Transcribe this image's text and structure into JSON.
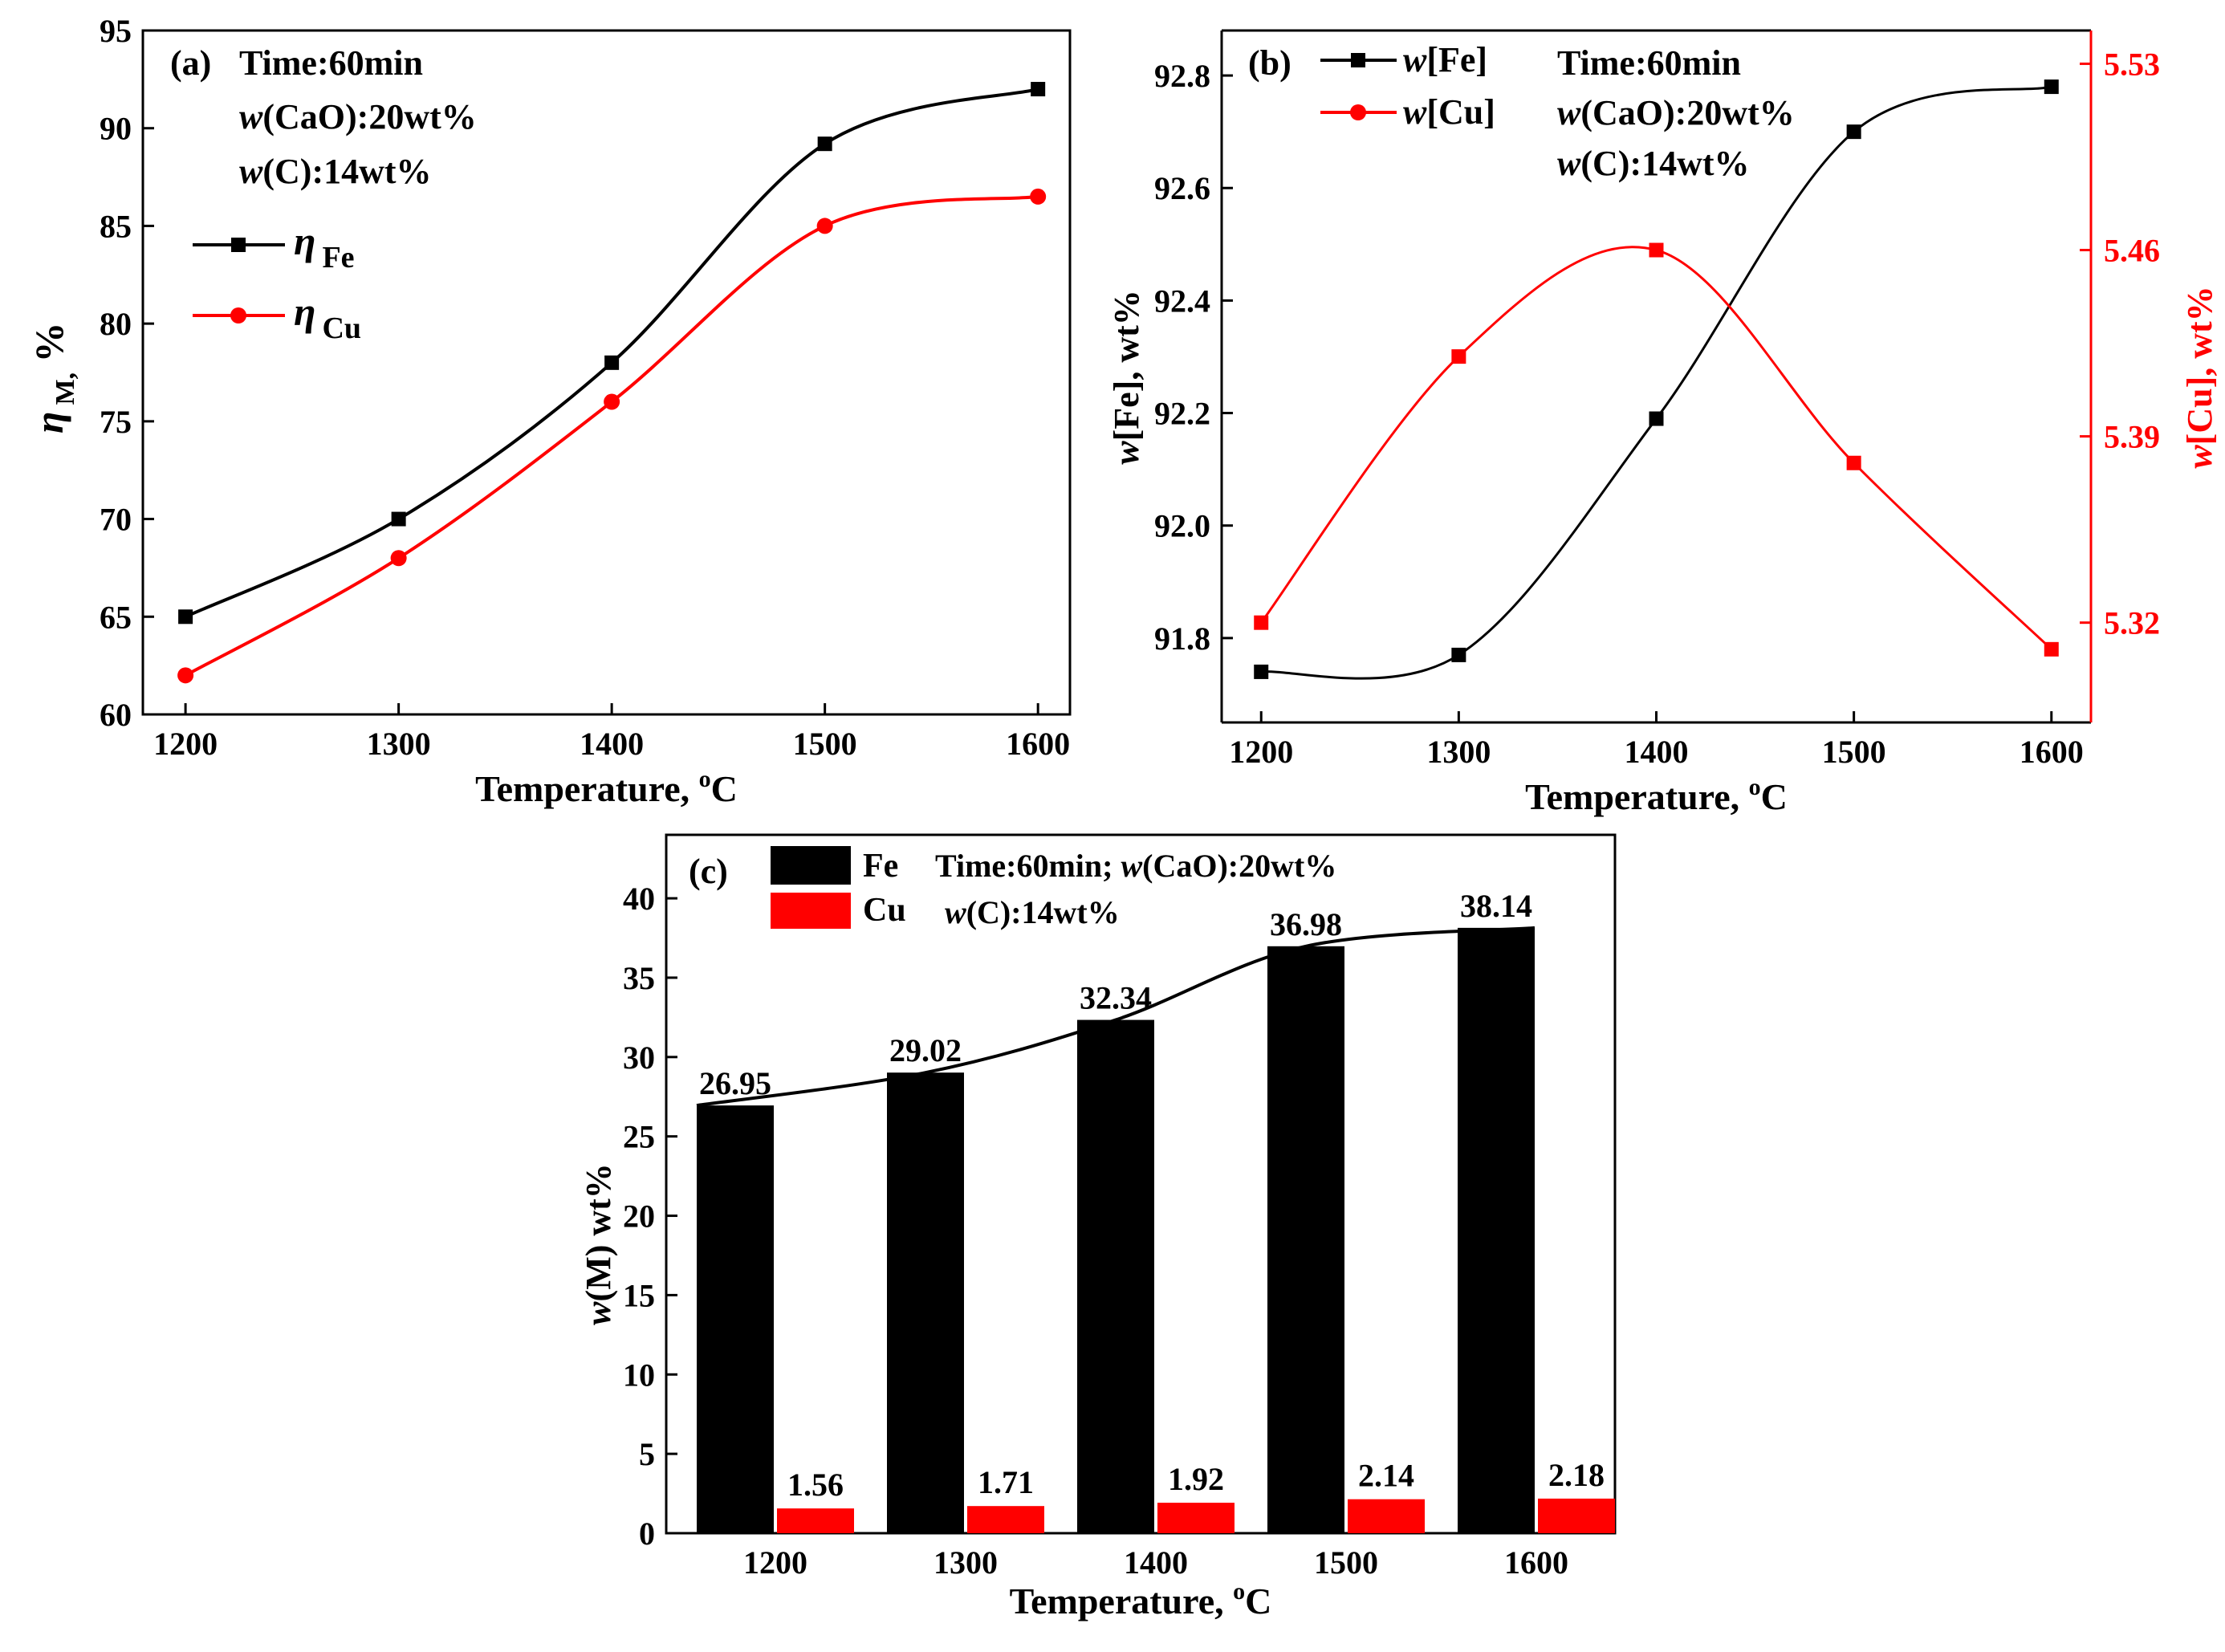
{
  "colors": {
    "fe": "#000000",
    "cu": "#ff0000",
    "axis": "#000000",
    "background": "#ffffff"
  },
  "icons": {
    "square_marker": "square-marker-icon",
    "circle_marker": "circle-marker-icon"
  },
  "chart_data": [
    {
      "id": "a",
      "type": "line",
      "panel_label": "(a)",
      "annotations": [
        "Time:60min",
        "w(CaO):20wt%",
        "w(C):14wt%"
      ],
      "xlabel": "Temperature, °C",
      "ylabel": "η M, %",
      "xlim": [
        1180,
        1615
      ],
      "ylim": [
        60,
        95
      ],
      "xticks": [
        1200,
        1300,
        1400,
        1500,
        1600
      ],
      "yticks": [
        60,
        65,
        70,
        75,
        80,
        85,
        90,
        95
      ],
      "legend": [
        "η Fe",
        "η Cu"
      ],
      "legend_position": "upper-left",
      "x": [
        1200,
        1300,
        1400,
        1500,
        1600
      ],
      "series": [
        {
          "name": "η Fe",
          "color": "#000000",
          "marker": "square",
          "values": [
            65,
            70,
            78,
            89.2,
            92
          ]
        },
        {
          "name": "η Cu",
          "color": "#ff0000",
          "marker": "circle",
          "values": [
            62,
            68,
            76,
            85,
            86.5
          ]
        }
      ]
    },
    {
      "id": "b",
      "type": "line",
      "panel_label": "(b)",
      "annotations": [
        "Time:60min",
        "w(CaO):20wt%",
        "w(C):14wt%"
      ],
      "xlabel": "Temperature, °C",
      "ylabel": "w[Fe], wt%",
      "ylabel_right": "w[Cu], wt%",
      "xlim": [
        1180,
        1620
      ],
      "ylim": [
        91.65,
        92.88
      ],
      "ylim_right": [
        5.2825,
        5.5425
      ],
      "xticks": [
        1200,
        1300,
        1400,
        1500,
        1600
      ],
      "yticks": [
        91.8,
        92.0,
        92.2,
        92.4,
        92.6,
        92.8
      ],
      "yticks_right": [
        5.32,
        5.39,
        5.46,
        5.53
      ],
      "legend": [
        "w[Fe]",
        "w[Cu]"
      ],
      "legend_position": "upper-left",
      "x": [
        1200,
        1300,
        1400,
        1500,
        1600
      ],
      "series": [
        {
          "name": "w[Fe]",
          "color": "#000000",
          "marker": "square",
          "axis": "left",
          "values": [
            91.74,
            91.77,
            92.19,
            92.7,
            92.78
          ]
        },
        {
          "name": "w[Cu]",
          "color": "#ff0000",
          "marker": "square",
          "axis": "right",
          "values": [
            5.32,
            5.42,
            5.46,
            5.38,
            5.31
          ]
        }
      ]
    },
    {
      "id": "c",
      "type": "bar",
      "panel_label": "(c)",
      "annotations": [
        "Time:60min; w(CaO):20wt%",
        "w(C):14wt%"
      ],
      "xlabel": "Temperature, °C",
      "ylabel": "w(M) wt%",
      "ylim": [
        0,
        44
      ],
      "yticks": [
        0,
        5,
        10,
        15,
        20,
        25,
        30,
        35,
        40
      ],
      "categories": [
        "1200",
        "1300",
        "1400",
        "1500",
        "1600"
      ],
      "legend": [
        "Fe",
        "Cu"
      ],
      "legend_position": "top-left",
      "series": [
        {
          "name": "Fe",
          "color": "#000000",
          "values": [
            26.95,
            29.02,
            32.34,
            36.98,
            38.14
          ],
          "labels": [
            "26.95",
            "29.02",
            "32.34",
            "36.98",
            "38.14"
          ]
        },
        {
          "name": "Cu",
          "color": "#ff0000",
          "values": [
            1.56,
            1.71,
            1.92,
            2.14,
            2.18
          ],
          "labels": [
            "1.56",
            "1.71",
            "1.92",
            "2.14",
            "2.18"
          ]
        }
      ]
    }
  ]
}
